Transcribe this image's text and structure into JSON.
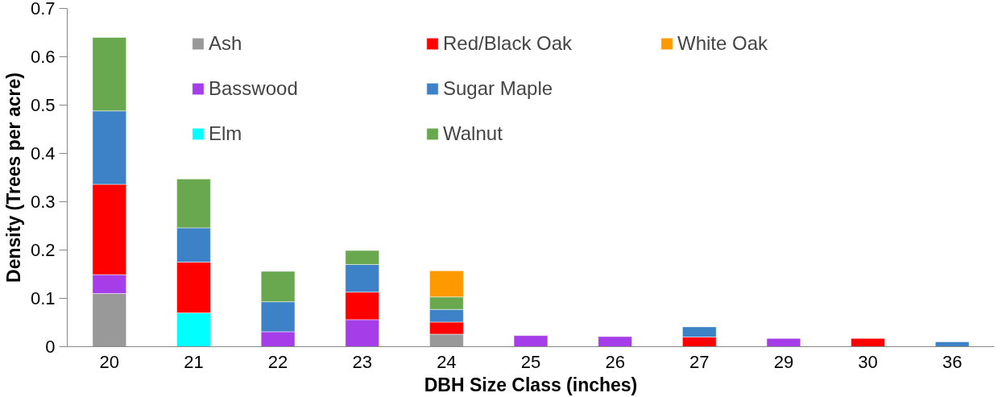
{
  "chart_data": {
    "type": "bar",
    "stacked": true,
    "xlabel": "DBH Size Class (inches)",
    "ylabel": "Density (Trees per acre)",
    "categories": [
      "20",
      "21",
      "22",
      "23",
      "24",
      "25",
      "26",
      "27",
      "29",
      "30",
      "36"
    ],
    "ylim": [
      0,
      0.7
    ],
    "yticks": [
      {
        "value": 0,
        "label": "0"
      },
      0.1,
      0.2,
      0.3,
      0.4,
      0.5,
      0.6,
      0.7
    ],
    "grid": false,
    "legend": "top",
    "series": [
      {
        "name": "Ash",
        "color": "#999999",
        "values": [
          0.11,
          null,
          null,
          null,
          0.026,
          null,
          null,
          null,
          null,
          null,
          null
        ]
      },
      {
        "name": "Basswood",
        "color": "#a53ee8",
        "values": [
          0.039,
          null,
          0.031,
          0.056,
          null,
          0.023,
          0.021,
          null,
          0.017,
          null,
          null
        ]
      },
      {
        "name": "Elm",
        "color": "#00ffff",
        "values": [
          null,
          0.07,
          null,
          null,
          null,
          null,
          null,
          null,
          null,
          null,
          null
        ]
      },
      {
        "name": "Red/Black Oak",
        "color": "#ff0000",
        "values": [
          0.187,
          0.105,
          null,
          0.057,
          0.025,
          null,
          null,
          0.02,
          null,
          0.017,
          null
        ]
      },
      {
        "name": "Sugar Maple",
        "color": "#3d82c6",
        "values": [
          0.152,
          0.071,
          0.062,
          0.057,
          0.026,
          null,
          null,
          0.021,
          null,
          null,
          0.01
        ]
      },
      {
        "name": "Walnut",
        "color": "#6aa84f",
        "values": [
          0.152,
          0.101,
          0.063,
          0.029,
          0.026,
          null,
          null,
          null,
          null,
          null,
          null
        ]
      },
      {
        "name": "White Oak",
        "color": "#ff9900",
        "values": [
          null,
          null,
          null,
          null,
          0.054,
          null,
          null,
          null,
          null,
          null,
          null
        ]
      }
    ]
  }
}
